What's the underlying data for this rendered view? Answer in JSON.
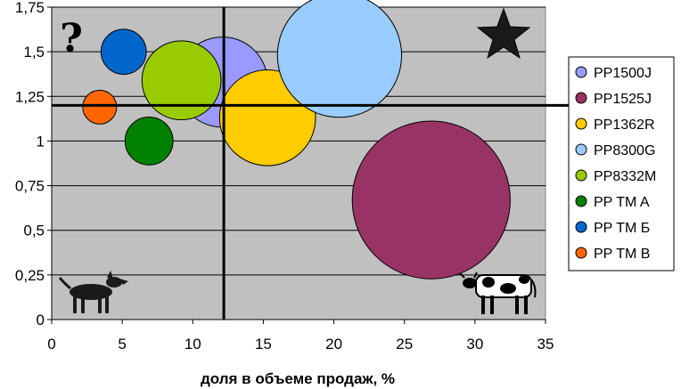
{
  "chart_data": {
    "type": "scatter",
    "subtype": "bubble",
    "title": "",
    "xlabel": "доля в объеме продаж, %",
    "ylabel": "",
    "xlim": [
      0,
      35
    ],
    "ylim": [
      0,
      1.75
    ],
    "x_ticks": [
      "0",
      "5",
      "10",
      "15",
      "20",
      "25",
      "30",
      "35"
    ],
    "y_ticks": [
      "0",
      "0,25",
      "0,5",
      "0,75",
      "1",
      "1,25",
      "1,5",
      "1,75"
    ],
    "grid": "horizontal",
    "legend_position": "right",
    "plot_background": "#c0c0c0",
    "divider_lines": {
      "x": 12.2,
      "y": 1.2
    },
    "series": [
      {
        "name": "PP1500J",
        "x": 12.1,
        "y": 1.33,
        "size": 3.2,
        "color": "#9999ff"
      },
      {
        "name": "PP1525J",
        "x": 26.9,
        "y": 0.67,
        "size": 5.6,
        "color": "#993366"
      },
      {
        "name": "PP1362R",
        "x": 15.3,
        "y": 1.13,
        "size": 3.4,
        "color": "#ffcc00"
      },
      {
        "name": "PP8300G",
        "x": 20.4,
        "y": 1.48,
        "size": 4.4,
        "color": "#99ccff"
      },
      {
        "name": "PP8332M",
        "x": 9.2,
        "y": 1.34,
        "size": 2.8,
        "color": "#99cc00"
      },
      {
        "name": "PP TM A",
        "x": 6.9,
        "y": 1.0,
        "size": 1.7,
        "color": "#008000"
      },
      {
        "name": "PP TM Б",
        "x": 5.1,
        "y": 1.5,
        "size": 1.6,
        "color": "#0066cc"
      },
      {
        "name": "PP TM B",
        "x": 3.4,
        "y": 1.19,
        "size": 1.2,
        "color": "#ff6600"
      }
    ],
    "quadrant_icons": {
      "top_left": "question-mark-icon",
      "top_right": "star-icon",
      "bottom_left": "dog-icon",
      "bottom_right": "cow-icon"
    }
  }
}
